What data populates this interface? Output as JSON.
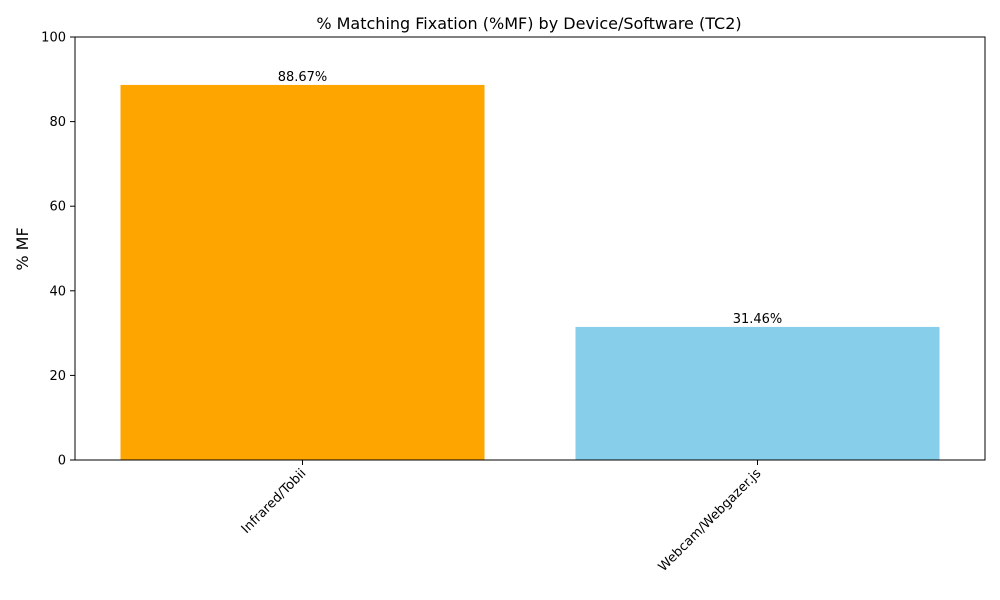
{
  "chart_data": {
    "type": "bar",
    "title": "% Matching Fixation (%MF) by Device/Software (TC2)",
    "xlabel": "",
    "ylabel": "% MF",
    "ylim": [
      0,
      100
    ],
    "yticks": [
      0,
      20,
      40,
      60,
      80,
      100
    ],
    "categories": [
      "Infrared/Tobii",
      "Webcam/Webgazer.js"
    ],
    "values": [
      88.67,
      31.46
    ],
    "data_labels": [
      "88.67%",
      "31.46%"
    ],
    "bar_colors": [
      "#FFA500",
      "#87CEEB"
    ],
    "grid": false,
    "legend": "none"
  }
}
